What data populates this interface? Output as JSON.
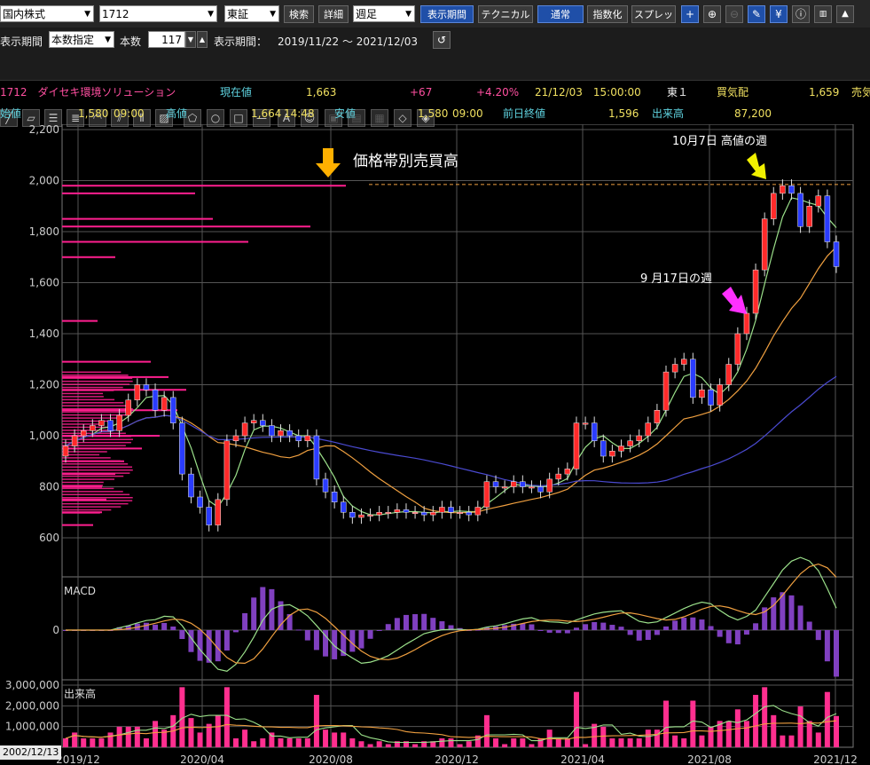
{
  "toolbar1": {
    "market": "国内株式",
    "code": "1712",
    "exchange": "東証",
    "search": "検索",
    "detail": "詳細",
    "period": "週足",
    "display_period": "表示期間",
    "technical": "テクニカル",
    "normal": "通常",
    "index": "指数化",
    "spread": "スプレッド"
  },
  "toolbar2": {
    "period_label": "表示期間",
    "period_mode": "本数指定",
    "count_label": "本数",
    "count_value": "117",
    "range_label": "表示期間：",
    "range_value": "2019/11/22 ～ 2021/12/03"
  },
  "info1": {
    "code_name": "1712　ダイセキ環境ソリューション",
    "current_label": "現在値",
    "current": "1,663",
    "change": "+67",
    "change_pct": "+4.20%",
    "datetime": "21/12/03　15:00:00",
    "market": "東１",
    "bid_label": "買気配",
    "bid": "1,659",
    "ask_label": "売気"
  },
  "info2": {
    "open_label": "始値",
    "open": "1,580",
    "open_time": "09:00",
    "high_label": "高値",
    "high": "1,664",
    "high_time": "14:48",
    "low_label": "安値",
    "low": "1,580",
    "low_time": "09:00",
    "prev_label": "前日終値",
    "prev": "1,596",
    "vol_label": "出来高",
    "vol": "87,200"
  },
  "annotations": {
    "vbp": "価格帯別売買高",
    "high_week": "10月7日 高値の週",
    "sep_week": "9 月17日の週"
  },
  "macd_label": "MACD",
  "volume_label": "出来高",
  "date_box": "2002/12/13",
  "colors": {
    "up": "#ff2a2a",
    "down": "#2a3cff",
    "ma1": "#9be08a",
    "ma2": "#f0a040",
    "ma3": "#4a4ad0",
    "vbp": "#ff1f8f"
  },
  "chart_data": [
    {
      "type": "candlestick",
      "y_ticks": [
        "2,200",
        "2,000",
        "1,800",
        "1,600",
        "1,400",
        "1,200",
        "1,000",
        "800",
        "600"
      ],
      "ylim": [
        600,
        2200
      ],
      "x_ticks": [
        "2019/12",
        "2020/04",
        "2020/08",
        "2020/12",
        "2021/04",
        "2021/08",
        "2021/12"
      ],
      "closes": [
        960,
        1000,
        1020,
        1040,
        1060,
        1020,
        1080,
        1140,
        1200,
        1180,
        1100,
        1150,
        1050,
        850,
        760,
        720,
        650,
        750,
        980,
        1000,
        1050,
        1060,
        1040,
        1000,
        1020,
        1000,
        980,
        1000,
        830,
        780,
        740,
        700,
        680,
        690,
        690,
        700,
        700,
        710,
        700,
        700,
        690,
        700,
        720,
        700,
        700,
        690,
        720,
        820,
        800,
        800,
        820,
        800,
        800,
        780,
        830,
        850,
        870,
        1050,
        1050,
        980,
        920,
        940,
        960,
        980,
        1000,
        1050,
        1100,
        1250,
        1280,
        1300,
        1150,
        1180,
        1120,
        1200,
        1280,
        1400,
        1480,
        1650,
        1850,
        1950,
        1980,
        1950,
        1820,
        1900,
        1940,
        1760,
        1663
      ],
      "volume_by_price": [
        {
          "price": 1980,
          "len": 320
        },
        {
          "price": 1950,
          "len": 150
        },
        {
          "price": 1850,
          "len": 170
        },
        {
          "price": 1820,
          "len": 280
        },
        {
          "price": 1760,
          "len": 210
        },
        {
          "price": 1700,
          "len": 60
        },
        {
          "price": 1450,
          "len": 40
        },
        {
          "price": 1290,
          "len": 100
        },
        {
          "price": 1230,
          "len": 120
        },
        {
          "price": 1180,
          "len": 140
        },
        {
          "price": 1100,
          "len": 130
        },
        {
          "price": 1000,
          "len": 110
        },
        {
          "price": 950,
          "len": 90
        },
        {
          "price": 900,
          "len": 70
        },
        {
          "price": 850,
          "len": 60
        },
        {
          "price": 800,
          "len": 45
        },
        {
          "price": 750,
          "len": 50
        },
        {
          "price": 700,
          "len": 45
        },
        {
          "price": 650,
          "len": 35
        }
      ]
    },
    {
      "type": "bar",
      "title": "MACD",
      "y_ticks": [
        "0"
      ]
    },
    {
      "type": "bar",
      "title": "出来高",
      "y_ticks": [
        "3,000,000",
        "2,000,000",
        "1,000,000"
      ],
      "ylim": [
        0,
        3000000
      ]
    }
  ]
}
